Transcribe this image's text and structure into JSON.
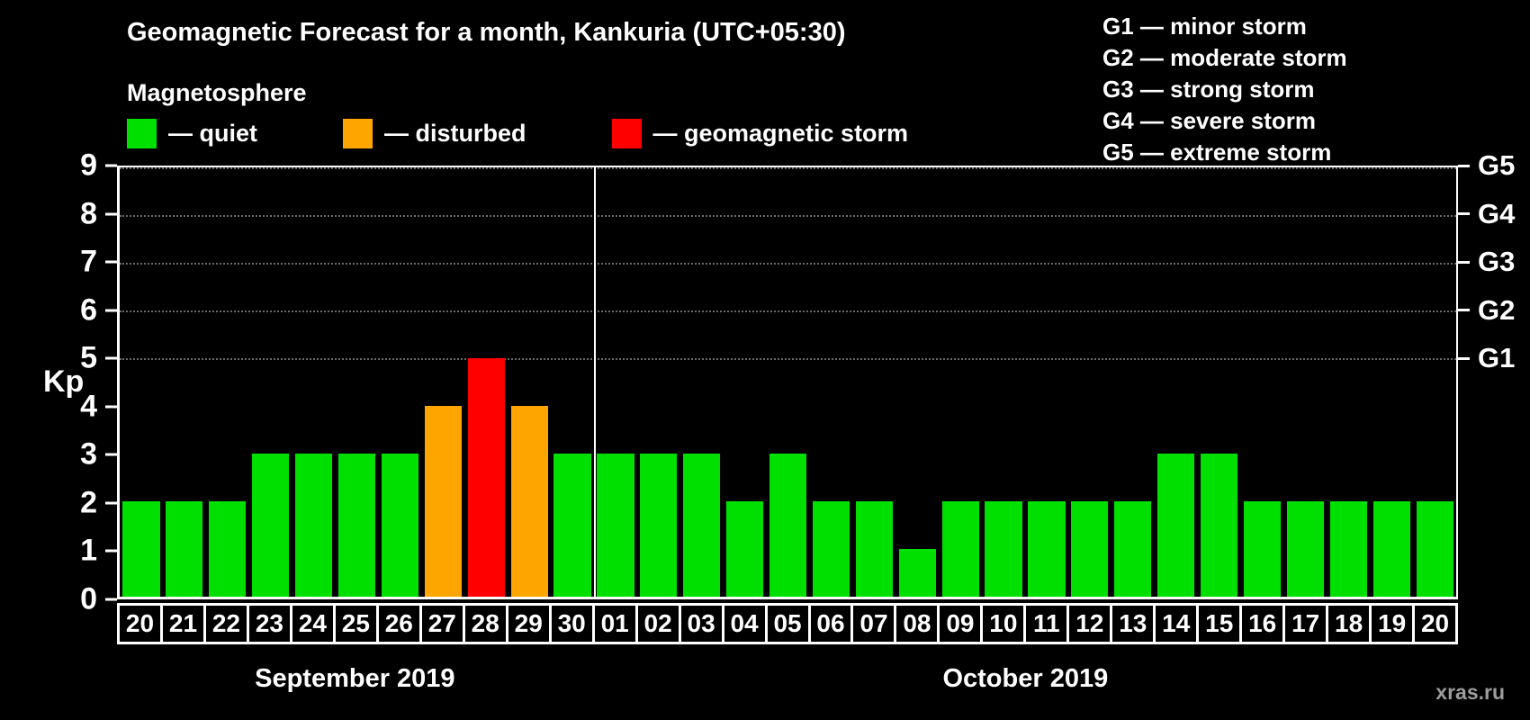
{
  "title": "Geomagnetic Forecast for a month, Kankuria (UTC+05:30)",
  "watermark": "xras.ru",
  "colors": {
    "quiet": "#00e000",
    "disturbed": "#ffa500",
    "storm": "#ff0000"
  },
  "legend": {
    "heading": "Magnetosphere",
    "items": [
      {
        "label": "— quiet",
        "state": "quiet"
      },
      {
        "label": "— disturbed",
        "state": "disturbed"
      },
      {
        "label": "— geomagnetic storm",
        "state": "storm"
      }
    ]
  },
  "g_legend": [
    "G1 — minor storm",
    "G2 — moderate storm",
    "G3 — strong storm",
    "G4 — severe storm",
    "G5 — extreme storm"
  ],
  "chart_data": {
    "type": "bar",
    "title": "Geomagnetic Forecast for a month, Kankuria (UTC+05:30)",
    "ylabel": "Kp",
    "ylim": [
      0,
      9
    ],
    "yticks": [
      0,
      1,
      2,
      3,
      4,
      5,
      6,
      7,
      8,
      9
    ],
    "right_axis": [
      {
        "label": "G1",
        "value": 5
      },
      {
        "label": "G2",
        "value": 6
      },
      {
        "label": "G3",
        "value": 7
      },
      {
        "label": "G4",
        "value": 8
      },
      {
        "label": "G5",
        "value": 9
      }
    ],
    "gridlines": [
      5,
      6,
      7,
      8,
      9
    ],
    "months": [
      {
        "label": "September 2019",
        "days": [
          "20",
          "21",
          "22",
          "23",
          "24",
          "25",
          "26",
          "27",
          "28",
          "29",
          "30"
        ]
      },
      {
        "label": "October 2019",
        "days": [
          "01",
          "02",
          "03",
          "04",
          "05",
          "06",
          "07",
          "08",
          "09",
          "10",
          "11",
          "12",
          "13",
          "14",
          "15",
          "16",
          "17",
          "18",
          "19",
          "20"
        ]
      }
    ],
    "categories": [
      "20",
      "21",
      "22",
      "23",
      "24",
      "25",
      "26",
      "27",
      "28",
      "29",
      "30",
      "01",
      "02",
      "03",
      "04",
      "05",
      "06",
      "07",
      "08",
      "09",
      "10",
      "11",
      "12",
      "13",
      "14",
      "15",
      "16",
      "17",
      "18",
      "19",
      "20"
    ],
    "values": [
      2,
      2,
      2,
      3,
      3,
      3,
      3,
      4,
      5,
      4,
      3,
      3,
      3,
      3,
      2,
      3,
      2,
      2,
      1,
      2,
      2,
      2,
      2,
      2,
      3,
      3,
      2,
      2,
      2,
      2,
      2
    ],
    "bars": [
      {
        "day": "20",
        "value": 2,
        "state": "quiet"
      },
      {
        "day": "21",
        "value": 2,
        "state": "quiet"
      },
      {
        "day": "22",
        "value": 2,
        "state": "quiet"
      },
      {
        "day": "23",
        "value": 3,
        "state": "quiet"
      },
      {
        "day": "24",
        "value": 3,
        "state": "quiet"
      },
      {
        "day": "25",
        "value": 3,
        "state": "quiet"
      },
      {
        "day": "26",
        "value": 3,
        "state": "quiet"
      },
      {
        "day": "27",
        "value": 4,
        "state": "disturbed"
      },
      {
        "day": "28",
        "value": 5,
        "state": "storm"
      },
      {
        "day": "29",
        "value": 4,
        "state": "disturbed"
      },
      {
        "day": "30",
        "value": 3,
        "state": "quiet"
      },
      {
        "day": "01",
        "value": 3,
        "state": "quiet"
      },
      {
        "day": "02",
        "value": 3,
        "state": "quiet"
      },
      {
        "day": "03",
        "value": 3,
        "state": "quiet"
      },
      {
        "day": "04",
        "value": 2,
        "state": "quiet"
      },
      {
        "day": "05",
        "value": 3,
        "state": "quiet"
      },
      {
        "day": "06",
        "value": 2,
        "state": "quiet"
      },
      {
        "day": "07",
        "value": 2,
        "state": "quiet"
      },
      {
        "day": "08",
        "value": 1,
        "state": "quiet"
      },
      {
        "day": "09",
        "value": 2,
        "state": "quiet"
      },
      {
        "day": "10",
        "value": 2,
        "state": "quiet"
      },
      {
        "day": "11",
        "value": 2,
        "state": "quiet"
      },
      {
        "day": "12",
        "value": 2,
        "state": "quiet"
      },
      {
        "day": "13",
        "value": 2,
        "state": "quiet"
      },
      {
        "day": "14",
        "value": 3,
        "state": "quiet"
      },
      {
        "day": "15",
        "value": 3,
        "state": "quiet"
      },
      {
        "day": "16",
        "value": 2,
        "state": "quiet"
      },
      {
        "day": "17",
        "value": 2,
        "state": "quiet"
      },
      {
        "day": "18",
        "value": 2,
        "state": "quiet"
      },
      {
        "day": "19",
        "value": 2,
        "state": "quiet"
      },
      {
        "day": "20",
        "value": 2,
        "state": "quiet"
      }
    ]
  }
}
